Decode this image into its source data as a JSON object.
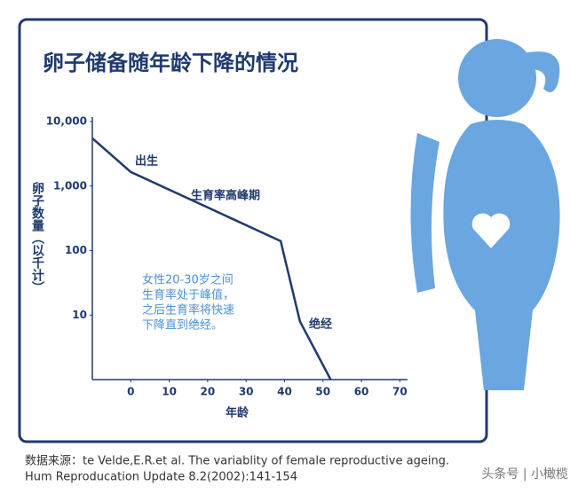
{
  "chart_data": {
    "type": "line",
    "title": "卵子储备随年龄下降的情况",
    "x_label": "年龄",
    "y_label": "卵子数量（以千计）",
    "x": [
      -10,
      0,
      39,
      44,
      52
    ],
    "values": [
      5500,
      1650,
      140,
      8,
      1
    ],
    "color": "#1f3a6e",
    "xlim": [
      -10,
      72
    ],
    "xticks": [
      0,
      10,
      20,
      30,
      40,
      50,
      60,
      70
    ],
    "ylim": [
      1,
      10000
    ],
    "yticks": [
      {
        "value": 10000,
        "label": "10,000"
      },
      {
        "value": 1000,
        "label": "1,000"
      },
      100,
      10
    ],
    "log_scale_y": true,
    "annotations": [
      "出生",
      "生育率高峰期",
      "绝经"
    ],
    "note": [
      "女性20-30岁之间",
      "生育率处于峰值，",
      "之后生育率将快速",
      "下降直到绝经。"
    ],
    "source": [
      "数据来源：te Velde,E.R.et al. The variablity of female reproductive ageing.",
      "Hum Reproducation Update 8.2(2002):141-154"
    ],
    "watermark": "头条号 | 小橄榄"
  }
}
